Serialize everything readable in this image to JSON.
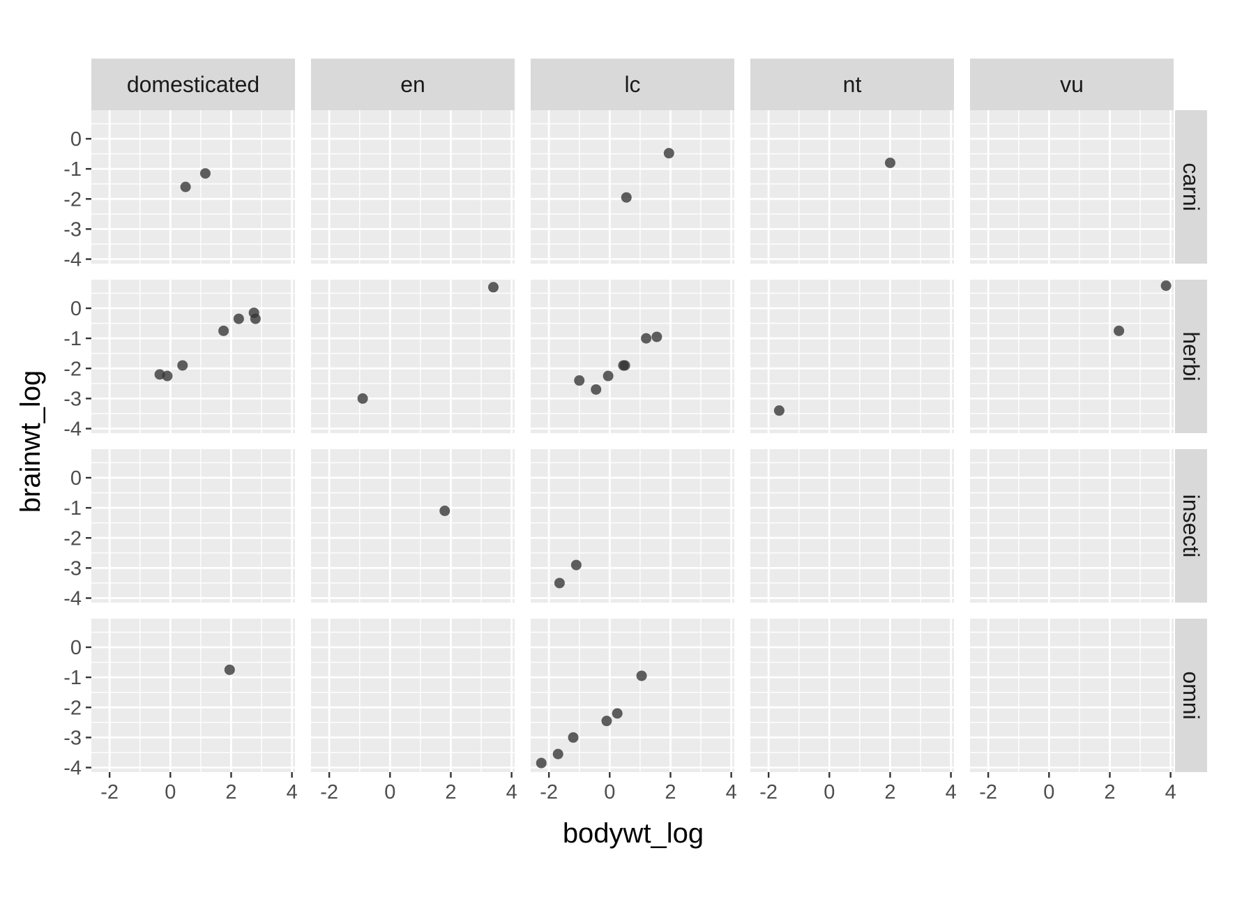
{
  "chart_data": {
    "type": "scatter",
    "xlabel": "bodywt_log",
    "ylabel": "brainwt_log",
    "xlim": [
      -2.6,
      4.1
    ],
    "ylim": [
      -4.15,
      0.95
    ],
    "x_ticks": [
      -2,
      0,
      2,
      4
    ],
    "y_ticks": [
      0,
      -1,
      -2,
      -3,
      -4
    ],
    "grid": true,
    "columns": [
      "domesticated",
      "en",
      "lc",
      "nt",
      "vu"
    ],
    "rows": [
      "carni",
      "herbi",
      "insecti",
      "omni"
    ],
    "point_color": "#333333",
    "panel_background": "#EBEBEB",
    "strip_background": "#D9D9D9",
    "points": {
      "carni": {
        "domesticated": [
          [
            0.5,
            -1.6
          ],
          [
            1.15,
            -1.15
          ]
        ],
        "en": [],
        "lc": [
          [
            0.55,
            -1.95
          ],
          [
            1.95,
            -0.48
          ]
        ],
        "nt": [
          [
            2.0,
            -0.8
          ]
        ],
        "vu": []
      },
      "herbi": {
        "domesticated": [
          [
            -0.35,
            -2.2
          ],
          [
            -0.1,
            -2.25
          ],
          [
            0.4,
            -1.9
          ],
          [
            1.75,
            -0.75
          ],
          [
            2.25,
            -0.35
          ],
          [
            2.75,
            -0.15
          ],
          [
            2.8,
            -0.35
          ]
        ],
        "en": [
          [
            -0.9,
            -3.0
          ],
          [
            3.4,
            0.7
          ]
        ],
        "lc": [
          [
            -1.0,
            -2.4
          ],
          [
            -0.45,
            -2.7
          ],
          [
            -0.05,
            -2.25
          ],
          [
            0.45,
            -1.9
          ],
          [
            0.5,
            -1.9
          ],
          [
            1.2,
            -1.0
          ],
          [
            1.55,
            -0.95
          ]
        ],
        "nt": [
          [
            -1.65,
            -3.4
          ]
        ],
        "vu": [
          [
            2.3,
            -0.75
          ],
          [
            3.85,
            0.75
          ]
        ]
      },
      "insecti": {
        "domesticated": [],
        "en": [
          [
            1.8,
            -1.1
          ]
        ],
        "lc": [
          [
            -1.65,
            -3.5
          ],
          [
            -1.1,
            -2.9
          ]
        ],
        "nt": [],
        "vu": []
      },
      "omni": {
        "domesticated": [
          [
            1.95,
            -0.75
          ]
        ],
        "en": [],
        "lc": [
          [
            -2.25,
            -3.85
          ],
          [
            -1.7,
            -3.55
          ],
          [
            -1.2,
            -3.0
          ],
          [
            -0.1,
            -2.45
          ],
          [
            0.25,
            -2.2
          ],
          [
            1.05,
            -0.95
          ]
        ],
        "nt": [],
        "vu": []
      }
    }
  }
}
